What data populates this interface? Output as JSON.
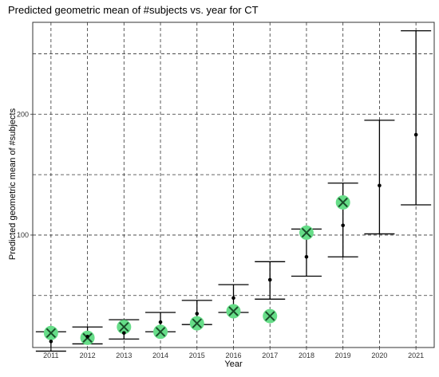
{
  "chart_data": {
    "type": "scatter",
    "title": "Predicted geometric mean of #subjects vs. year for CT",
    "xlabel": "Year",
    "ylabel": "Predicted geometric mean of #subjects",
    "categories": [
      "2011",
      "2012",
      "2013",
      "2014",
      "2015",
      "2016",
      "2017",
      "2018",
      "2019",
      "2020",
      "2021"
    ],
    "yticks": [
      100,
      200
    ],
    "ylim": [
      7,
      276
    ],
    "grid": true,
    "series": [
      {
        "kind": "predicted",
        "values": [
          12,
          16,
          19,
          28,
          35,
          48,
          63,
          82,
          108,
          141,
          183
        ],
        "lower": [
          4,
          10,
          14,
          20,
          26,
          36,
          47,
          66,
          82,
          101,
          125
        ],
        "upper": [
          20,
          24,
          30,
          36,
          46,
          59,
          78,
          105,
          143,
          195,
          269
        ]
      },
      {
        "kind": "observed",
        "values": [
          19,
          15,
          24,
          20,
          27,
          37,
          33,
          102,
          127,
          null,
          null
        ]
      }
    ],
    "colors": {
      "predicted": "#000000",
      "observed_fill": "#66dd88",
      "observed_mark": "#1a4d2a",
      "grid": "#333333"
    }
  }
}
